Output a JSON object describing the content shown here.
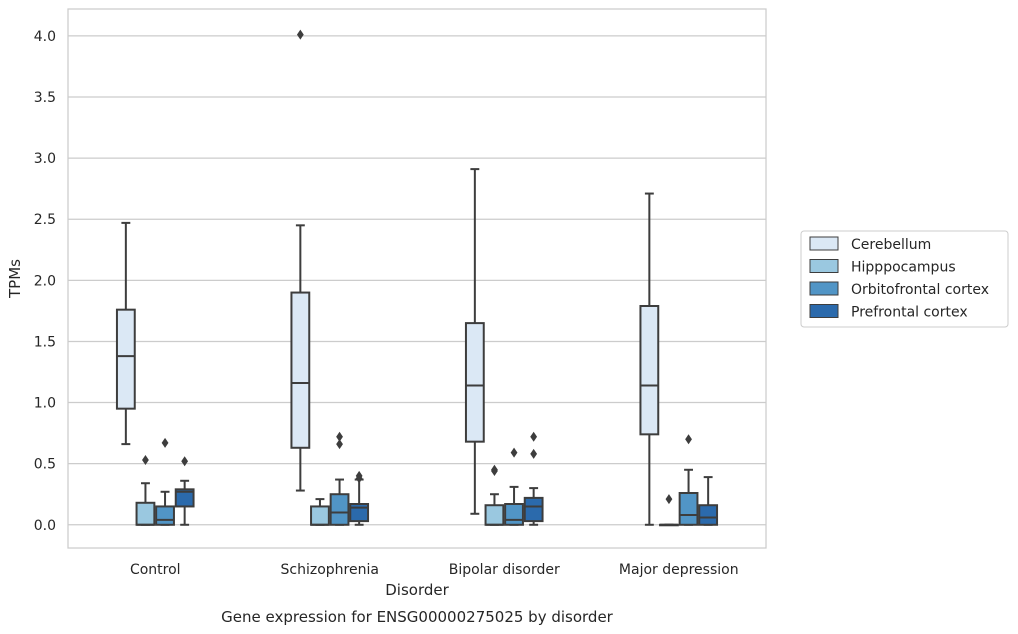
{
  "chart_data": {
    "type": "boxplot",
    "title": "Gene expression for ENSG00000275025 by disorder",
    "xlabel": "Disorder",
    "ylabel": "TPMs",
    "ylim": [
      -0.19,
      4.22
    ],
    "yticks": [
      "0.0",
      "0.5",
      "1.0",
      "1.5",
      "2.0",
      "2.5",
      "3.0",
      "3.5",
      "4.0"
    ],
    "ytick_values": [
      0,
      0.5,
      1,
      1.5,
      2,
      2.5,
      3,
      3.5,
      4
    ],
    "grid": "horizontal",
    "legend_position": "right",
    "categories": [
      "Control",
      "Schizophrenia",
      "Bipolar disorder",
      "Major depression"
    ],
    "series": [
      {
        "name": "Cerebellum",
        "color": "#dbe8f5",
        "boxes": [
          {
            "whislo": 0.66,
            "q1": 0.95,
            "med": 1.38,
            "q3": 1.76,
            "whishi": 2.47,
            "fliers": []
          },
          {
            "whislo": 0.28,
            "q1": 0.63,
            "med": 1.16,
            "q3": 1.9,
            "whishi": 2.45,
            "fliers": [
              4.01
            ]
          },
          {
            "whislo": 0.09,
            "q1": 0.68,
            "med": 1.14,
            "q3": 1.65,
            "whishi": 2.91,
            "fliers": []
          },
          {
            "whislo": 0.0,
            "q1": 0.74,
            "med": 1.14,
            "q3": 1.79,
            "whishi": 2.71,
            "fliers": []
          }
        ]
      },
      {
        "name": "Hipppocampus",
        "color": "#9ac8e0",
        "boxes": [
          {
            "whislo": 0.0,
            "q1": 0.0,
            "med": 0.0,
            "q3": 0.18,
            "whishi": 0.34,
            "fliers": [
              0.53
            ]
          },
          {
            "whislo": 0.0,
            "q1": 0.0,
            "med": 0.0,
            "q3": 0.15,
            "whishi": 0.21,
            "fliers": []
          },
          {
            "whislo": 0.0,
            "q1": 0.0,
            "med": 0.0,
            "q3": 0.16,
            "whishi": 0.25,
            "fliers": [
              0.44,
              0.45
            ]
          },
          {
            "whislo": 0.0,
            "q1": 0.0,
            "med": 0.0,
            "q3": 0.0,
            "whishi": 0.0,
            "fliers": [
              0.21
            ]
          }
        ]
      },
      {
        "name": "Orbitofrontal cortex",
        "color": "#5195c6",
        "boxes": [
          {
            "whislo": 0.0,
            "q1": 0.0,
            "med": 0.04,
            "q3": 0.15,
            "whishi": 0.27,
            "fliers": [
              0.67
            ]
          },
          {
            "whislo": 0.0,
            "q1": 0.0,
            "med": 0.1,
            "q3": 0.25,
            "whishi": 0.37,
            "fliers": [
              0.66,
              0.72
            ]
          },
          {
            "whislo": 0.0,
            "q1": 0.0,
            "med": 0.04,
            "q3": 0.17,
            "whishi": 0.31,
            "fliers": [
              0.59
            ]
          },
          {
            "whislo": 0.0,
            "q1": 0.0,
            "med": 0.08,
            "q3": 0.26,
            "whishi": 0.45,
            "fliers": [
              0.7
            ]
          }
        ]
      },
      {
        "name": "Prefrontal cortex",
        "color": "#2b6aac",
        "boxes": [
          {
            "whislo": 0.0,
            "q1": 0.15,
            "med": 0.27,
            "q3": 0.29,
            "whishi": 0.36,
            "fliers": [
              0.52
            ]
          },
          {
            "whislo": 0.0,
            "q1": 0.03,
            "med": 0.14,
            "q3": 0.17,
            "whishi": 0.37,
            "fliers": [
              0.38,
              0.4
            ]
          },
          {
            "whislo": 0.0,
            "q1": 0.03,
            "med": 0.15,
            "q3": 0.22,
            "whishi": 0.3,
            "fliers": [
              0.58,
              0.72
            ]
          },
          {
            "whislo": 0.0,
            "q1": 0.0,
            "med": 0.06,
            "q3": 0.16,
            "whishi": 0.39,
            "fliers": []
          }
        ]
      }
    ]
  },
  "colors": {
    "grid": "#cccccc",
    "frame": "#cccccc",
    "line": "#3d3d3d",
    "text": "#262626"
  }
}
